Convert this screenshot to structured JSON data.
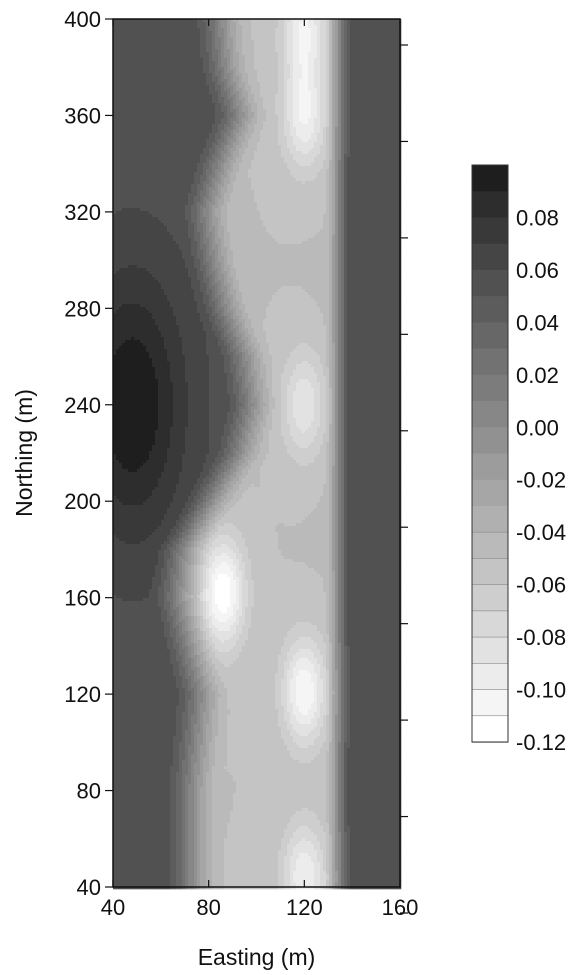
{
  "chart_data": {
    "type": "heatmap",
    "title": "",
    "xlabel": "Easting (m)",
    "ylabel": "Northing (m)",
    "xlim": [
      40,
      160
    ],
    "ylim": [
      40,
      400
    ],
    "x_ticks": [
      "40",
      "80",
      "120",
      "160"
    ],
    "y_ticks": [
      "40",
      "80",
      "120",
      "160",
      "200",
      "240",
      "280",
      "320",
      "360",
      "400"
    ],
    "grid": false,
    "legend_position": "right",
    "colorbar": {
      "levels": [
        0.1,
        0.09,
        0.08,
        0.07,
        0.06,
        0.05,
        0.04,
        0.03,
        0.02,
        0.01,
        0.0,
        -0.01,
        -0.02,
        -0.03,
        -0.04,
        -0.05,
        -0.06,
        -0.07,
        -0.08,
        -0.09,
        -0.1,
        -0.11,
        -0.12
      ],
      "labels": [
        "0.08",
        "0.06",
        "0.04",
        "0.02",
        "0.00",
        "-0.02",
        "-0.04",
        "-0.06",
        "-0.08",
        "-0.10",
        "-0.12"
      ],
      "label_values": [
        0.08,
        0.06,
        0.04,
        0.02,
        0.0,
        -0.02,
        -0.04,
        -0.06,
        -0.08,
        -0.1,
        -0.12
      ]
    },
    "features": {
      "trough_east_edge_easting": 138,
      "trough_west_edge": {
        "northing": [
          40,
          80,
          120,
          140,
          160,
          180,
          200,
          220,
          240,
          260,
          280,
          300,
          320,
          340,
          360,
          380,
          400
        ],
        "easting": [
          72,
          72,
          76,
          71,
          66,
          68,
          80,
          92,
          97,
          94,
          86,
          81,
          78,
          84,
          92,
          86,
          84
        ]
      },
      "minima": [
        {
          "easting": 86,
          "northing": 162,
          "value": -0.12
        },
        {
          "easting": 120,
          "northing": 121,
          "value": -0.11
        },
        {
          "easting": 120,
          "northing": 360,
          "value": -0.1
        },
        {
          "easting": 120,
          "northing": 240,
          "value": -0.09
        },
        {
          "easting": 120,
          "northing": 44,
          "value": -0.1
        },
        {
          "easting": 120,
          "northing": 396,
          "value": -0.1
        }
      ],
      "maxima": [
        {
          "easting": 48,
          "northing": 240,
          "value": 0.1
        },
        {
          "easting": 150,
          "northing": 240,
          "value": 0.06
        }
      ]
    }
  }
}
